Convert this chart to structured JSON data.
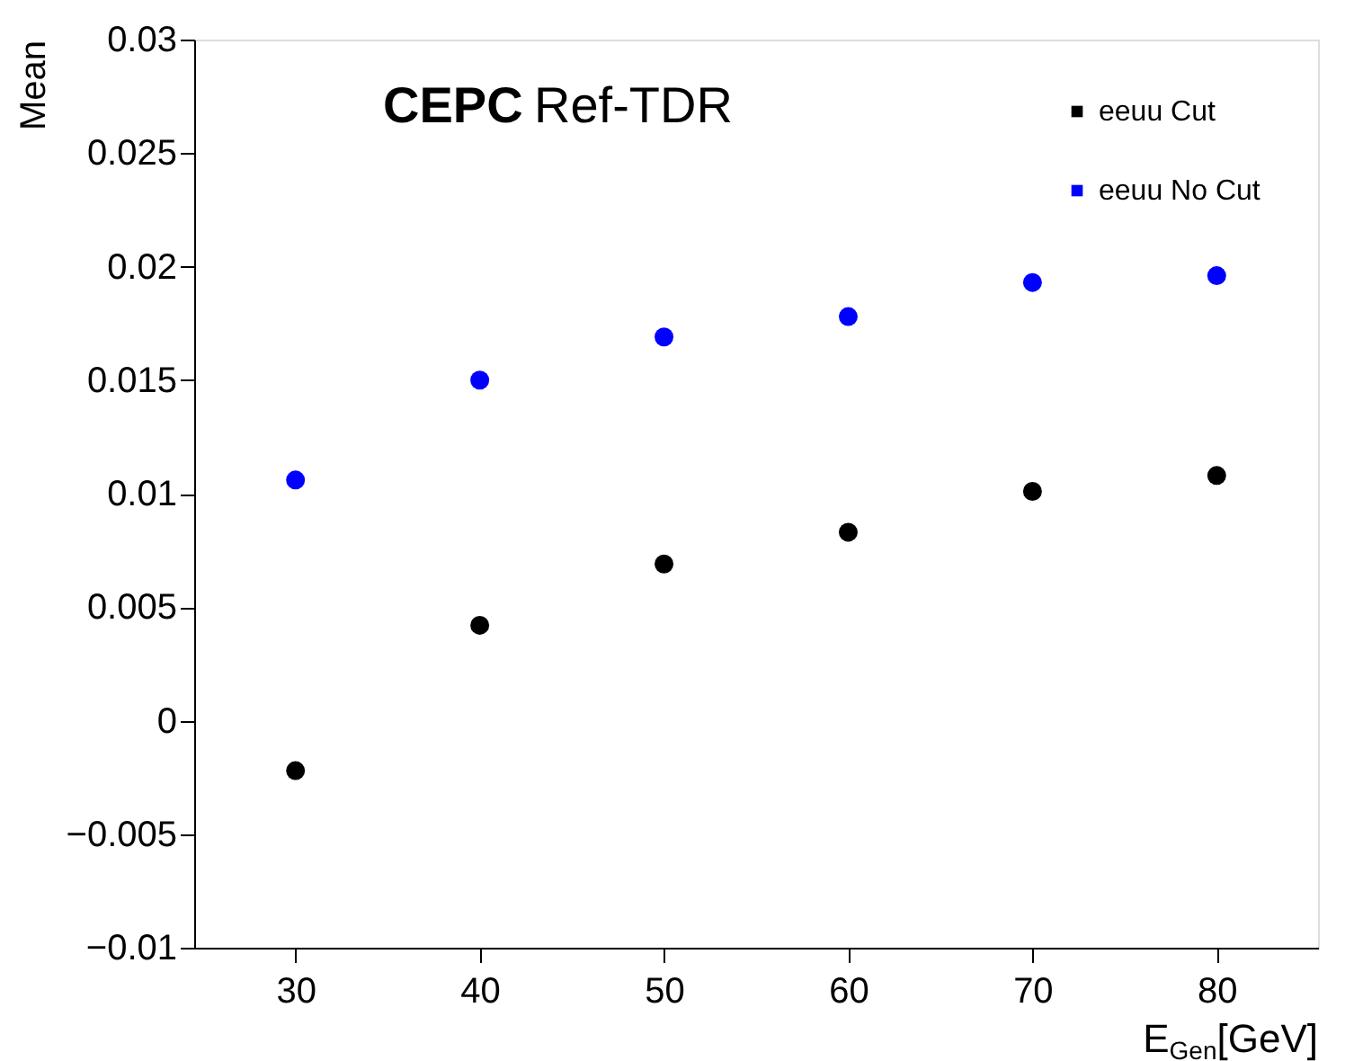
{
  "chart_data": {
    "type": "scatter",
    "xlabel": "E$_{Gen}$[GeV]",
    "ylabel": "Mean",
    "annotations": [
      "CEPC",
      "Ref-TDR"
    ],
    "x": [
      30,
      40,
      50,
      60,
      70,
      80
    ],
    "series": [
      {
        "name": "eeuu Cut",
        "color": "#000000",
        "values": [
          -0.0022,
          0.0042,
          0.0069,
          0.0083,
          0.0101,
          0.0108
        ]
      },
      {
        "name": "eeuu No Cut",
        "color": "#0000ff",
        "values": [
          0.0106,
          0.015,
          0.0169,
          0.0178,
          0.0193,
          0.0196
        ]
      }
    ],
    "xlim": [
      24.5,
      85.5
    ],
    "xticks": [
      30,
      40,
      50,
      60,
      70,
      80
    ],
    "ylim": [
      -0.01,
      0.03
    ],
    "yticks": [
      -0.01,
      -0.005,
      0,
      0.005,
      0.01,
      0.015,
      0.02,
      0.025,
      0.03
    ],
    "grid": false,
    "legend": "top right",
    "marker": "circle"
  }
}
